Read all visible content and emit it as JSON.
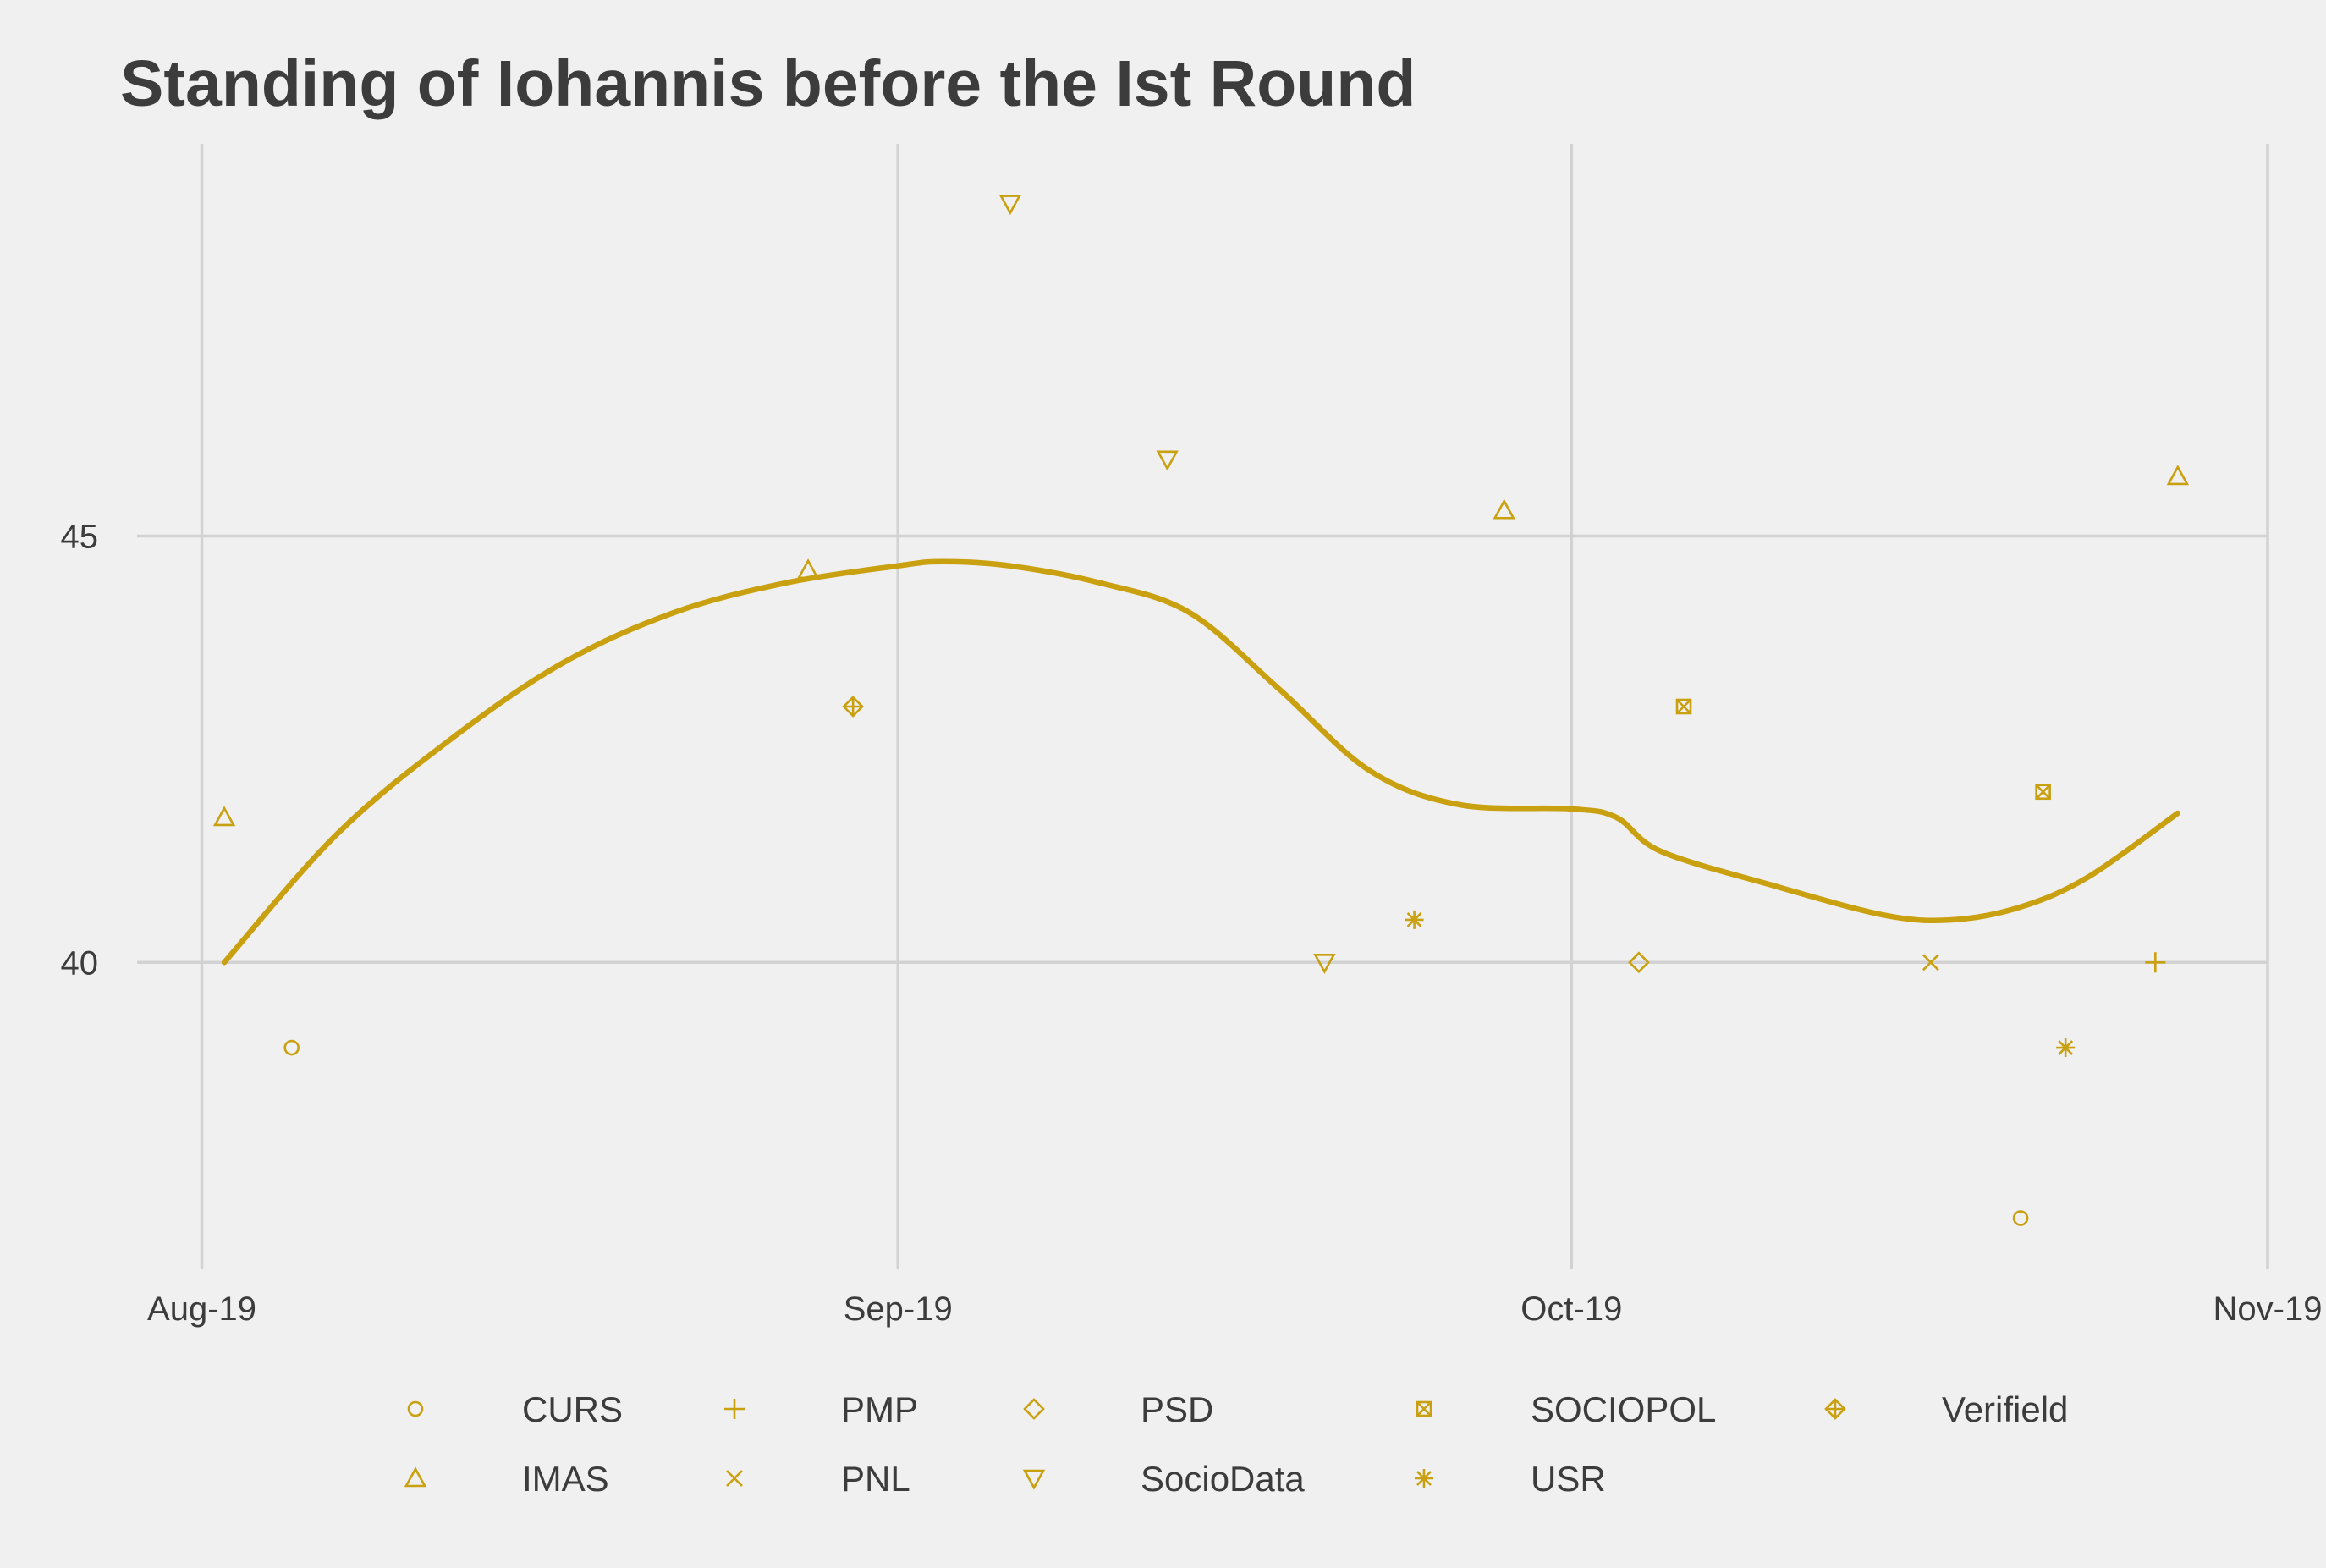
{
  "chart_data": {
    "type": "scatter",
    "title": "Standing of Iohannis before the Ist Round",
    "xlabel": "",
    "ylabel": "",
    "x_axis": {
      "type": "date",
      "range": [
        "2019-07-31",
        "2019-11-01"
      ],
      "ticks": [
        {
          "date": "2019-08-01",
          "label": "Aug-19"
        },
        {
          "date": "2019-09-01",
          "label": "Sep-19"
        },
        {
          "date": "2019-10-01",
          "label": "Oct-19"
        },
        {
          "date": "2019-11-01",
          "label": "Nov-19"
        }
      ]
    },
    "y_axis": {
      "range": [
        36.4,
        49.6
      ],
      "ticks": [
        {
          "value": 40,
          "label": "40"
        },
        {
          "value": 45,
          "label": "45"
        }
      ]
    },
    "grid": true,
    "legend": "bottom",
    "color": "#c9a00f",
    "series": [
      {
        "name": "CURS",
        "shape": "circle",
        "points": [
          {
            "x": "2019-08-05",
            "y": 39
          },
          {
            "x": "2019-10-21",
            "y": 37
          }
        ]
      },
      {
        "name": "IMAS",
        "shape": "triangle-up",
        "points": [
          {
            "x": "2019-08-02",
            "y": 41.7
          },
          {
            "x": "2019-08-28",
            "y": 44.6
          },
          {
            "x": "2019-09-28",
            "y": 45.3
          },
          {
            "x": "2019-10-28",
            "y": 45.7
          }
        ]
      },
      {
        "name": "PMP",
        "shape": "plus",
        "points": [
          {
            "x": "2019-10-27",
            "y": 40
          }
        ]
      },
      {
        "name": "PNL",
        "shape": "cross",
        "points": [
          {
            "x": "2019-10-17",
            "y": 40
          }
        ]
      },
      {
        "name": "PSD",
        "shape": "diamond",
        "points": [
          {
            "x": "2019-10-04",
            "y": 40
          }
        ]
      },
      {
        "name": "SocioData",
        "shape": "triangle-down",
        "points": [
          {
            "x": "2019-09-06",
            "y": 48.9
          },
          {
            "x": "2019-09-13",
            "y": 45.9
          },
          {
            "x": "2019-09-20",
            "y": 40
          }
        ]
      },
      {
        "name": "SOCIOPOL",
        "shape": "square-cross",
        "points": [
          {
            "x": "2019-10-06",
            "y": 43
          },
          {
            "x": "2019-10-22",
            "y": 42
          }
        ]
      },
      {
        "name": "USR",
        "shape": "asterisk",
        "points": [
          {
            "x": "2019-09-24",
            "y": 40.5
          },
          {
            "x": "2019-10-23",
            "y": 39
          }
        ]
      },
      {
        "name": "Verifield",
        "shape": "diamond-plus",
        "points": [
          {
            "x": "2019-08-30",
            "y": 43
          }
        ]
      }
    ],
    "trend": {
      "type": "smooth",
      "points": [
        {
          "x": "2019-08-02",
          "y": 40.0
        },
        {
          "x": "2019-08-07",
          "y": 41.5
        },
        {
          "x": "2019-08-12",
          "y": 42.6
        },
        {
          "x": "2019-08-17",
          "y": 43.5
        },
        {
          "x": "2019-08-22",
          "y": 44.1
        },
        {
          "x": "2019-08-27",
          "y": 44.45
        },
        {
          "x": "2019-09-01",
          "y": 44.65
        },
        {
          "x": "2019-09-03",
          "y": 44.7
        },
        {
          "x": "2019-09-06",
          "y": 44.65
        },
        {
          "x": "2019-09-10",
          "y": 44.45
        },
        {
          "x": "2019-09-14",
          "y": 44.1
        },
        {
          "x": "2019-09-18",
          "y": 43.2
        },
        {
          "x": "2019-09-22",
          "y": 42.25
        },
        {
          "x": "2019-09-26",
          "y": 41.85
        },
        {
          "x": "2019-10-01",
          "y": 41.8
        },
        {
          "x": "2019-10-03",
          "y": 41.7
        },
        {
          "x": "2019-10-05",
          "y": 41.3
        },
        {
          "x": "2019-10-10",
          "y": 40.9
        },
        {
          "x": "2019-10-15",
          "y": 40.55
        },
        {
          "x": "2019-10-18",
          "y": 40.5
        },
        {
          "x": "2019-10-21",
          "y": 40.65
        },
        {
          "x": "2019-10-24",
          "y": 41.0
        },
        {
          "x": "2019-10-28",
          "y": 41.75
        }
      ]
    }
  }
}
